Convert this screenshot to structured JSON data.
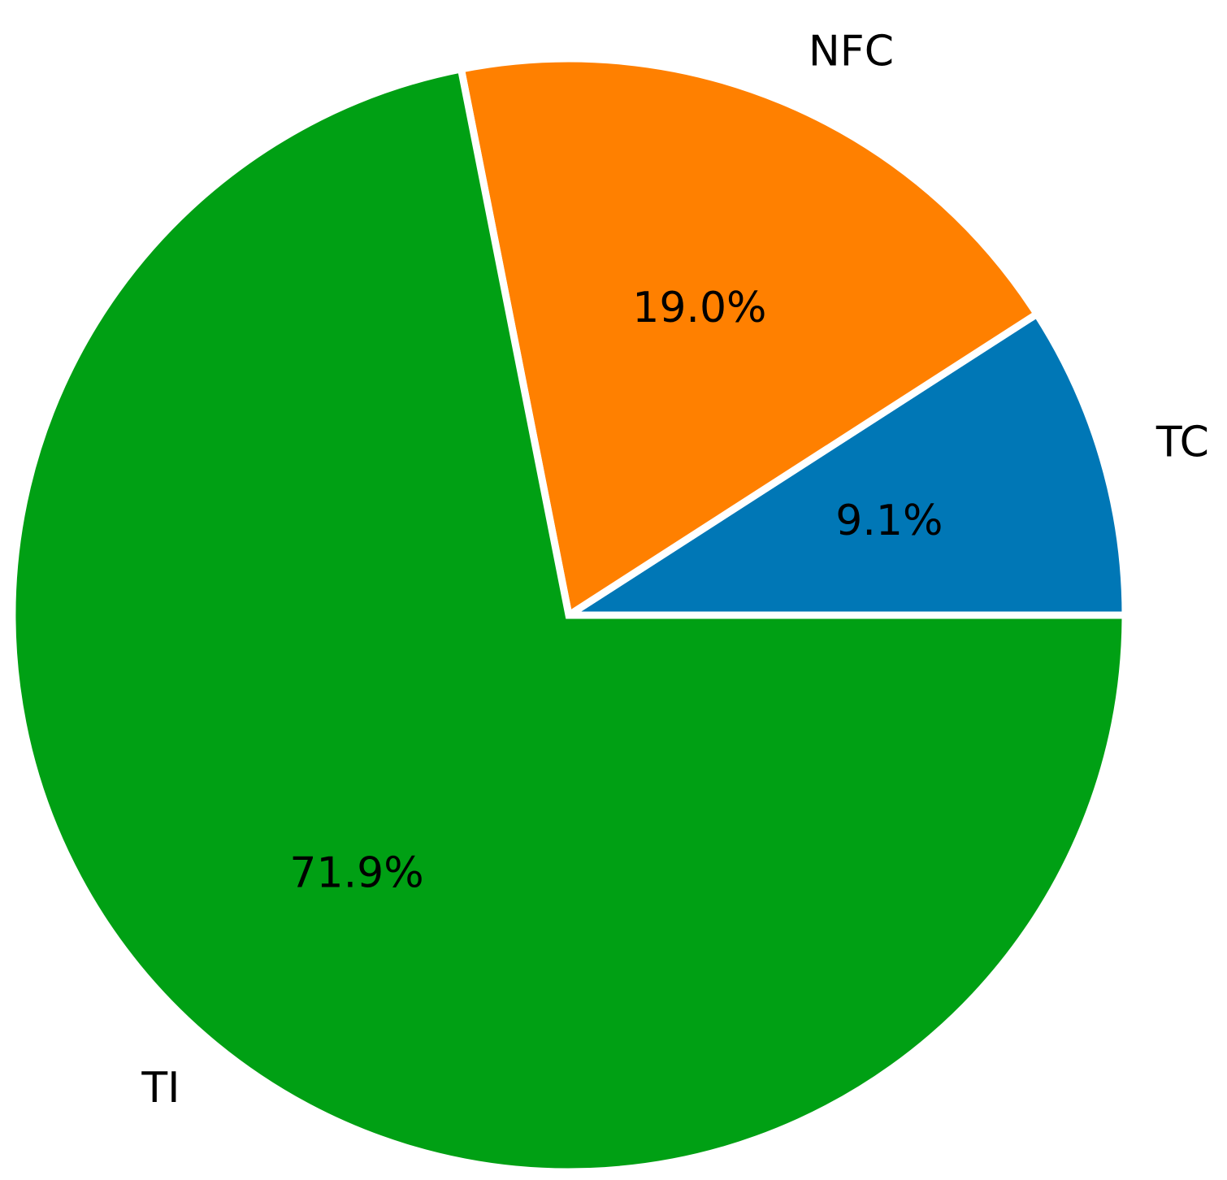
{
  "chart_data": {
    "type": "pie",
    "title": "",
    "start_angle_deg": 0,
    "direction": "counterclockwise",
    "slices": [
      {
        "label": "TC",
        "value": 9.1,
        "pct_label": "9.1%",
        "color": "#0077b6"
      },
      {
        "label": "NFC",
        "value": 19.0,
        "pct_label": "19.0%",
        "color": "#ff8000"
      },
      {
        "label": "TI",
        "value": 71.9,
        "pct_label": "71.9%",
        "color": "#00a014"
      }
    ],
    "wedge_edge_color": "#ffffff"
  }
}
